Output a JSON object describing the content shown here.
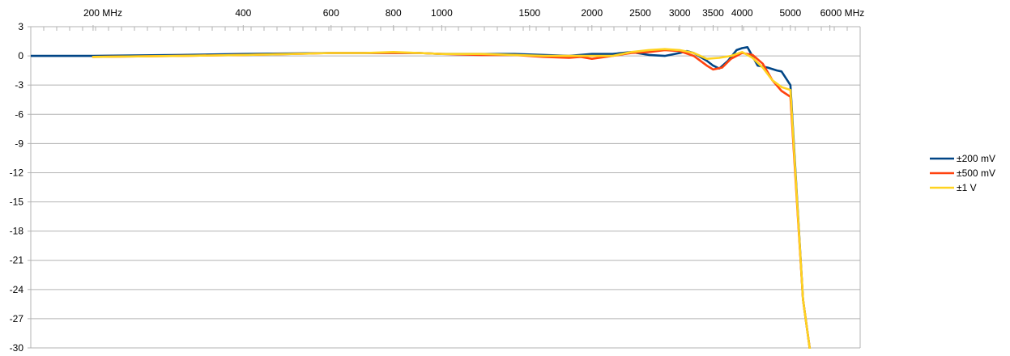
{
  "chart_data": {
    "type": "line",
    "title": "",
    "xlabel": "",
    "ylabel": "",
    "x_scale": "log",
    "xlim": [
      150,
      6900
    ],
    "ylim": [
      -30,
      3
    ],
    "y_ticks": [
      3,
      0,
      -3,
      -6,
      -9,
      -12,
      -15,
      -18,
      -21,
      -24,
      -27,
      -30
    ],
    "x_tick_labels": [
      {
        "value": 200,
        "label": "200 MHz"
      },
      {
        "value": 400,
        "label": "400"
      },
      {
        "value": 600,
        "label": "600"
      },
      {
        "value": 800,
        "label": "800"
      },
      {
        "value": 1000,
        "label": "1000"
      },
      {
        "value": 1500,
        "label": "1500"
      },
      {
        "value": 2000,
        "label": "2000"
      },
      {
        "value": 2500,
        "label": "2500"
      },
      {
        "value": 3000,
        "label": "3000"
      },
      {
        "value": 3500,
        "label": "3500"
      },
      {
        "value": 4000,
        "label": "4000"
      },
      {
        "value": 5000,
        "label": "5000"
      },
      {
        "value": 6000,
        "label": "6000 MHz"
      }
    ],
    "grid": true,
    "legend_position": "right",
    "series": [
      {
        "name": "±200 mV",
        "color": "#004586",
        "x": [
          150,
          200,
          300,
          400,
          500,
          600,
          700,
          800,
          900,
          1000,
          1200,
          1400,
          1600,
          1800,
          2000,
          2200,
          2400,
          2600,
          2800,
          3000,
          3100,
          3200,
          3400,
          3500,
          3600,
          3750,
          3900,
          4000,
          4100,
          4300,
          4500,
          4700,
          4800,
          5000,
          5300,
          5500
        ],
        "y": [
          0,
          0,
          0.1,
          0.2,
          0.25,
          0.3,
          0.3,
          0.3,
          0.3,
          0.2,
          0.2,
          0.2,
          0.1,
          0,
          0.2,
          0.2,
          0.4,
          0.1,
          0,
          0.3,
          0.5,
          0.3,
          -0.5,
          -1,
          -1.3,
          -0.5,
          0.6,
          0.8,
          0.9,
          -1,
          -1.2,
          -1.5,
          -1.6,
          -3,
          -25,
          -31
        ]
      },
      {
        "name": "±500 mV",
        "color": "#ff420e",
        "x": [
          200,
          300,
          400,
          500,
          600,
          700,
          800,
          900,
          1000,
          1200,
          1400,
          1600,
          1800,
          1900,
          2000,
          2200,
          2400,
          2600,
          2800,
          3000,
          3200,
          3400,
          3500,
          3650,
          3800,
          4000,
          4200,
          4400,
          4600,
          4800,
          5000,
          5300,
          5500
        ],
        "y": [
          -0.1,
          0,
          0.1,
          0.2,
          0.3,
          0.3,
          0.3,
          0.3,
          0.2,
          0.1,
          0.1,
          -0.1,
          -0.2,
          -0.1,
          -0.3,
          0,
          0.3,
          0.4,
          0.6,
          0.5,
          0,
          -1,
          -1.4,
          -1.2,
          -0.3,
          0.3,
          0.1,
          -0.8,
          -2.5,
          -3.6,
          -4.2,
          -25,
          -31
        ]
      },
      {
        "name": "±1 V",
        "color": "#ffd320",
        "x": [
          200,
          300,
          400,
          500,
          600,
          700,
          800,
          900,
          1000,
          1200,
          1400,
          1600,
          1800,
          2000,
          2200,
          2400,
          2600,
          2800,
          3000,
          3200,
          3400,
          3600,
          3800,
          4000,
          4200,
          4400,
          4600,
          4800,
          5000,
          5300,
          5500
        ],
        "y": [
          -0.1,
          0,
          0.1,
          0.2,
          0.3,
          0.3,
          0.4,
          0.3,
          0.2,
          0.2,
          0.1,
          0,
          0,
          0,
          0,
          0.4,
          0.6,
          0.7,
          0.6,
          0.3,
          -0.3,
          -0.2,
          0,
          0.4,
          -0.2,
          -1.2,
          -2.5,
          -3.2,
          -3.5,
          -25,
          -31
        ]
      }
    ]
  }
}
